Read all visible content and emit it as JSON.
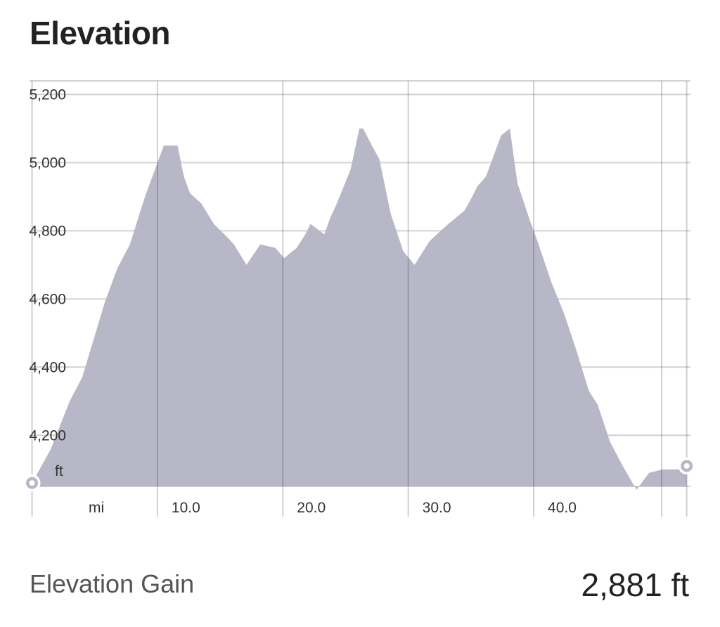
{
  "header": {
    "title": "Elevation"
  },
  "chart_data": {
    "type": "area",
    "title": "",
    "x_unit_label": "mi",
    "y_unit_label": "ft",
    "xlim": [
      -0.2,
      52.5
    ],
    "ylim": [
      4050,
      5240
    ],
    "yticks": [
      4200,
      4400,
      4600,
      4800,
      5000,
      5200
    ],
    "ytick_labels": [
      "4,200",
      "4,400",
      "4,600",
      "4,800",
      "5,000",
      "5,200"
    ],
    "xticks": [
      10,
      20,
      30,
      40
    ],
    "xtick_labels": [
      "10.0",
      "20.0",
      "30.0",
      "40.0"
    ],
    "grid": true,
    "fill_color": "#b8b7c8",
    "series": [
      {
        "x": [
          0,
          1.5,
          3,
          4,
          5.8,
          6.3,
          6.8,
          7.8,
          9,
          10.5,
          11.6,
          12.1,
          12.6,
          13.5,
          14.5,
          15.6,
          16.1,
          17.1,
          18.2,
          19.4,
          20.1,
          21.1,
          21.8,
          22.2,
          23.3,
          23.8,
          24.3,
          25.4,
          26.1,
          26.4,
          27.1,
          27.7,
          28.6,
          29.6,
          30.5,
          31.7,
          32.6,
          33.2,
          34.5,
          35.1,
          35.5,
          36.2,
          37.4,
          38.1,
          38.7,
          39.7,
          40.3,
          41.4,
          42.4,
          43.4,
          44.4,
          45.1,
          46.1,
          47.1,
          48.2,
          49.2,
          50.3,
          51.8,
          52.2
        ],
        "y": [
          4060,
          4160,
          4300,
          4370,
          4590,
          4640,
          4690,
          4760,
          4900,
          5050,
          5050,
          4960,
          4910,
          4880,
          4820,
          4780,
          4760,
          4700,
          4760,
          4750,
          4720,
          4750,
          4790,
          4820,
          4790,
          4840,
          4880,
          4980,
          5100,
          5100,
          5050,
          5010,
          4850,
          4740,
          4700,
          4770,
          4800,
          4820,
          4860,
          4900,
          4930,
          4960,
          5080,
          5100,
          4940,
          4830,
          4770,
          4650,
          4560,
          4450,
          4330,
          4290,
          4180,
          4110,
          4040,
          4090,
          4100,
          4100,
          4110
        ]
      }
    ]
  },
  "stats": {
    "gain_label": "Elevation Gain",
    "gain_value": "2,881 ft"
  }
}
